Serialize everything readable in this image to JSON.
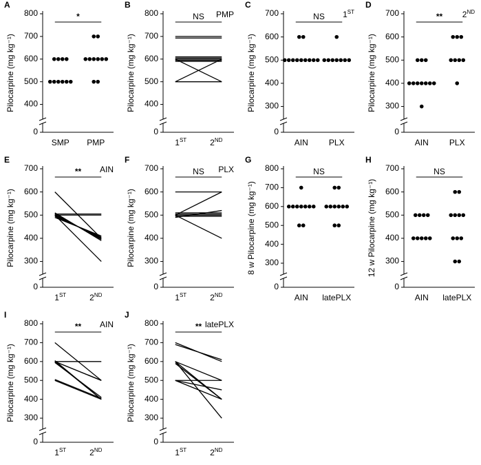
{
  "chart_data": [
    {
      "type": "strip",
      "panel": "A",
      "ylabel": "Pilocarpine (mg kg⁻¹)",
      "categories": [
        "SMP",
        "PMP"
      ],
      "significance": "*",
      "values": [
        [
          500,
          500,
          500,
          500,
          500,
          500,
          600,
          600,
          600,
          600
        ],
        [
          700,
          700,
          600,
          600,
          600,
          600,
          600,
          600,
          500,
          500
        ]
      ],
      "ylim": [
        350,
        800
      ],
      "yticks": [
        0,
        400,
        500,
        600,
        700,
        800
      ],
      "axis_break": true,
      "color": "#000000"
    },
    {
      "type": "paired",
      "panel": "B",
      "ylabel": "Pilocarpine (mg kg⁻¹)",
      "categories": [
        [
          "1",
          "ST"
        ],
        [
          "2",
          "ND"
        ]
      ],
      "significance": "NS",
      "annotation": "PMP",
      "pairs": [
        [
          700,
          700
        ],
        [
          693,
          693
        ],
        [
          610,
          610
        ],
        [
          605,
          605
        ],
        [
          600,
          600
        ],
        [
          595,
          595
        ],
        [
          590,
          590
        ],
        [
          500,
          600
        ],
        [
          600,
          500
        ],
        [
          500,
          500
        ]
      ],
      "ylim": [
        350,
        800
      ],
      "yticks": [
        0,
        400,
        500,
        600,
        700,
        800
      ],
      "axis_break": true,
      "color": "#000000"
    },
    {
      "type": "strip",
      "panel": "C",
      "ylabel": "Pilocarpine (mg kg⁻¹)",
      "categories": [
        "AIN",
        "PLX"
      ],
      "significance": "NS",
      "annotation": [
        "1",
        "ST"
      ],
      "values": [
        [
          600,
          600,
          500,
          500,
          500,
          500,
          500,
          500,
          500,
          500,
          500
        ],
        [
          600,
          500,
          500,
          500,
          500,
          500,
          500,
          500
        ]
      ],
      "ylim": [
        260,
        700
      ],
      "yticks": [
        0,
        300,
        400,
        500,
        600,
        700
      ],
      "axis_break": true,
      "color": "#000000"
    },
    {
      "type": "strip",
      "panel": "D",
      "ylabel": "Pilocarpine (mg kg⁻¹)",
      "categories": [
        "AIN",
        "PLX"
      ],
      "significance": "**",
      "annotation": [
        "2",
        "ND"
      ],
      "values": [
        [
          500,
          500,
          500,
          400,
          400,
          400,
          400,
          400,
          400,
          400,
          300
        ],
        [
          600,
          600,
          600,
          500,
          500,
          500,
          500,
          400
        ]
      ],
      "ylim": [
        260,
        700
      ],
      "yticks": [
        0,
        300,
        400,
        500,
        600,
        700
      ],
      "axis_break": true,
      "color": "#000000"
    },
    {
      "type": "paired",
      "panel": "E",
      "ylabel": "Pilocarpine (mg kg⁻¹)",
      "categories": [
        [
          "1",
          "ST"
        ],
        [
          "2",
          "ND"
        ]
      ],
      "significance": "**",
      "annotation": "AIN",
      "pairs": [
        [
          600,
          400
        ],
        [
          500,
          500
        ],
        [
          500,
          400
        ],
        [
          500,
          400
        ],
        [
          500,
          400
        ],
        [
          505,
          395
        ],
        [
          510,
          390
        ],
        [
          490,
          410
        ],
        [
          495,
          405
        ],
        [
          500,
          300
        ],
        [
          505,
          505
        ]
      ],
      "ylim": [
        260,
        700
      ],
      "yticks": [
        0,
        300,
        400,
        500,
        600,
        700
      ],
      "axis_break": true,
      "color": "#000000"
    },
    {
      "type": "paired",
      "panel": "F",
      "ylabel": "Pilocarpine (mg kg⁻¹)",
      "categories": [
        [
          "1",
          "ST"
        ],
        [
          "2",
          "ND"
        ]
      ],
      "significance": "NS",
      "annotation": "PLX",
      "pairs": [
        [
          600,
          600
        ],
        [
          500,
          600
        ],
        [
          500,
          500
        ],
        [
          510,
          510
        ],
        [
          505,
          505
        ],
        [
          495,
          495
        ],
        [
          490,
          520
        ],
        [
          500,
          400
        ]
      ],
      "ylim": [
        260,
        700
      ],
      "yticks": [
        0,
        300,
        400,
        500,
        600,
        700
      ],
      "axis_break": true,
      "color": "#000000"
    },
    {
      "type": "strip",
      "panel": "G",
      "ylabel": "8 w Pilocarpine (mg kg⁻¹)",
      "categories": [
        "AIN",
        "latePLX"
      ],
      "significance": "NS",
      "values": [
        [
          700,
          600,
          600,
          600,
          600,
          600,
          600,
          600,
          500,
          500
        ],
        [
          700,
          700,
          600,
          600,
          600,
          600,
          600,
          600,
          500,
          500
        ]
      ],
      "ylim": [
        260,
        800
      ],
      "yticks": [
        0,
        300,
        400,
        500,
        600,
        700,
        800
      ],
      "axis_break": true,
      "color": "#000000"
    },
    {
      "type": "strip",
      "panel": "H",
      "ylabel": "12 w Pilocarpine (mg kg⁻¹)",
      "categories": [
        "AIN",
        "latePLX"
      ],
      "significance": "NS",
      "values": [
        [
          500,
          500,
          500,
          500,
          400,
          400,
          400,
          400,
          400
        ],
        [
          600,
          600,
          500,
          500,
          500,
          500,
          400,
          400,
          400,
          300,
          300
        ]
      ],
      "ylim": [
        260,
        700
      ],
      "yticks": [
        0,
        300,
        400,
        500,
        600,
        700
      ],
      "axis_break": true,
      "color": "#000000"
    },
    {
      "type": "paired",
      "panel": "I",
      "ylabel": "Pilocarpine (mg kg⁻¹)",
      "categories": [
        [
          "1",
          "ST"
        ],
        [
          "2",
          "ND"
        ]
      ],
      "significance": "**",
      "annotation": "AIN",
      "pairs": [
        [
          700,
          500
        ],
        [
          600,
          600
        ],
        [
          600,
          500
        ],
        [
          600,
          400
        ],
        [
          605,
          400
        ],
        [
          500,
          400
        ],
        [
          505,
          405
        ],
        [
          595,
          410
        ],
        [
          600,
          500
        ]
      ],
      "ylim": [
        260,
        800
      ],
      "yticks": [
        0,
        300,
        400,
        500,
        600,
        700,
        800
      ],
      "axis_break": true,
      "color": "#000000"
    },
    {
      "type": "paired",
      "panel": "J",
      "ylabel": "Pilocarpine (mg kg⁻¹)",
      "categories": [
        [
          "1",
          "ST"
        ],
        [
          "2",
          "ND"
        ]
      ],
      "significance": "**",
      "annotation": "latePLX",
      "pairs": [
        [
          700,
          600
        ],
        [
          690,
          610
        ],
        [
          600,
          500
        ],
        [
          600,
          400
        ],
        [
          500,
          500
        ],
        [
          500,
          400
        ],
        [
          600,
          300
        ],
        [
          500,
          450
        ],
        [
          590,
          400
        ]
      ],
      "ylim": [
        260,
        800
      ],
      "yticks": [
        0,
        300,
        400,
        500,
        600,
        700,
        800
      ],
      "axis_break": true,
      "color": "#000000"
    }
  ]
}
